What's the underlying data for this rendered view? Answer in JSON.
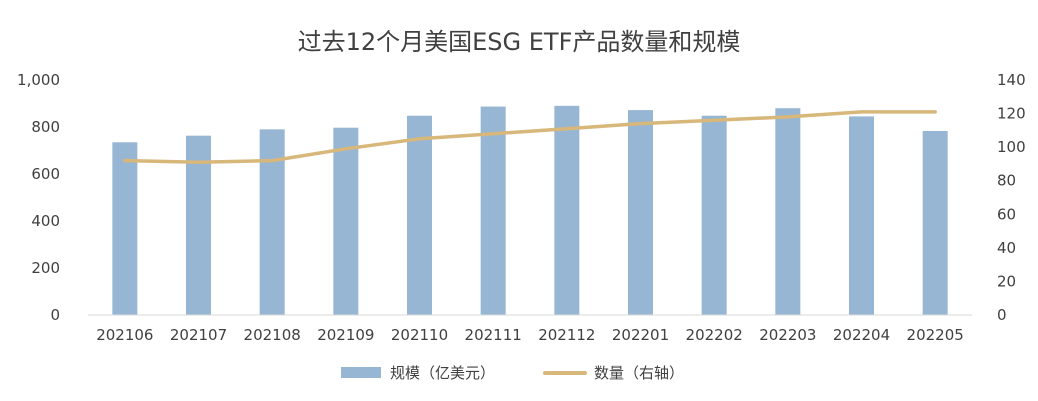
{
  "chart_data": {
    "type": "bar+line",
    "title": "过去12个月美国ESG ETF产品数量和规模",
    "categories": [
      "202106",
      "202107",
      "202108",
      "202109",
      "202110",
      "202111",
      "202112",
      "202201",
      "202202",
      "202203",
      "202204",
      "202205"
    ],
    "series": [
      {
        "name": "规模（亿美元）",
        "type": "bar",
        "axis": "left",
        "color": "#97B6D4",
        "values": [
          735,
          763,
          790,
          797,
          848,
          887,
          890,
          872,
          848,
          880,
          845,
          783
        ]
      },
      {
        "name": "数量（右轴）",
        "type": "line",
        "axis": "right",
        "color": "#D7B77A",
        "values": [
          92,
          91,
          92,
          99,
          105,
          108,
          111,
          114,
          116,
          118,
          121,
          121
        ]
      }
    ],
    "y_left": {
      "range": [
        0,
        1000
      ],
      "ticks": [
        0,
        200,
        400,
        600,
        800,
        1000
      ],
      "tick_labels": [
        "0",
        "200",
        "400",
        "600",
        "800",
        "1,000"
      ]
    },
    "y_right": {
      "range": [
        0,
        140
      ],
      "ticks": [
        0,
        20,
        40,
        60,
        80,
        100,
        120,
        140
      ],
      "tick_labels": [
        "0",
        "20",
        "40",
        "60",
        "80",
        "100",
        "120",
        "140"
      ]
    },
    "grid": false,
    "legend_position": "bottom"
  }
}
